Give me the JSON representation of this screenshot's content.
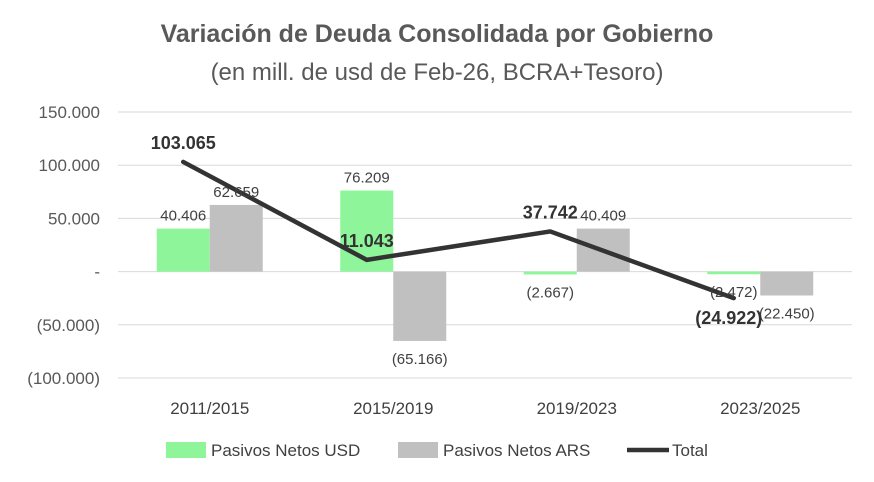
{
  "chart_data": {
    "type": "bar",
    "title": "Variación de Deuda Consolidada por Gobierno",
    "subtitle": "(en mill. de usd de Feb-26, BCRA+Tesoro)",
    "categories": [
      "2011/2015",
      "2015/2019",
      "2019/2023",
      "2023/2025"
    ],
    "ylim": [
      -100000,
      150000
    ],
    "yticks": [
      150000,
      100000,
      50000,
      0,
      -50000,
      -100000
    ],
    "ytick_labels": [
      "150.000",
      "100.000",
      "50.000",
      "-",
      "(50.000)",
      "(100.000)"
    ],
    "grid": true,
    "legend_position": "bottom",
    "series": [
      {
        "name": "Pasivos Netos USD",
        "type": "bar",
        "color": "#8ef59a",
        "values": [
          40406,
          76209,
          -2667,
          -2472
        ],
        "labels": [
          "40.406",
          "76.209",
          "(2.667)",
          "(2.472)"
        ]
      },
      {
        "name": "Pasivos Netos ARS",
        "type": "bar",
        "color": "#c0c0c0",
        "values": [
          62659,
          -65166,
          40409,
          -22450
        ],
        "labels": [
          "62.659",
          "(65.166)",
          "40.409",
          "(22.450)"
        ]
      },
      {
        "name": "Total",
        "type": "line",
        "color": "#333333",
        "values": [
          103065,
          11043,
          37742,
          -24922
        ],
        "labels": [
          "103.065",
          "11.043",
          "37.742",
          "(24.922)"
        ]
      }
    ]
  }
}
